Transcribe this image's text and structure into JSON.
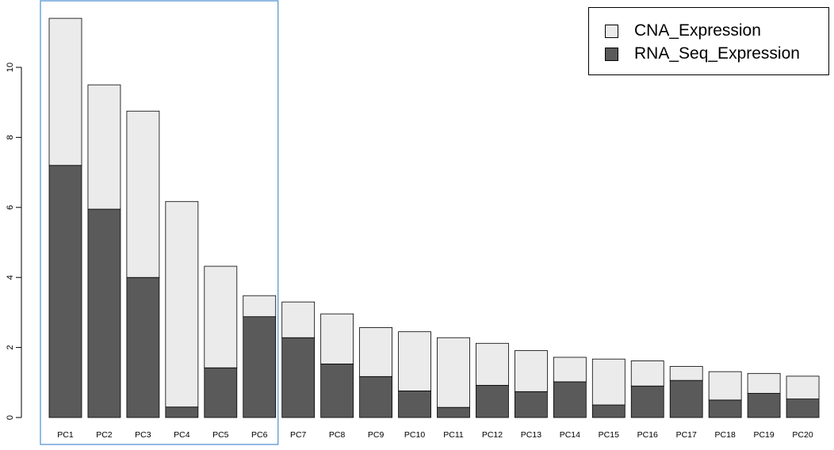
{
  "chart_data": {
    "type": "bar",
    "stacked": true,
    "categories": [
      "PC1",
      "PC2",
      "PC3",
      "PC4",
      "PC5",
      "PC6",
      "PC7",
      "PC8",
      "PC9",
      "PC10",
      "PC11",
      "PC12",
      "PC13",
      "PC14",
      "PC15",
      "PC16",
      "PC17",
      "PC18",
      "PC19",
      "PC20"
    ],
    "series": [
      {
        "name": "RNA_Seq_Expression",
        "color": "#5a5a5a",
        "values": [
          7.2,
          5.95,
          4.0,
          0.3,
          1.42,
          2.88,
          2.28,
          1.53,
          1.17,
          0.76,
          0.29,
          0.92,
          0.74,
          1.02,
          0.36,
          0.9,
          1.06,
          0.5,
          0.69,
          0.53
        ]
      },
      {
        "name": "CNA_Expression",
        "color": "#ebebeb",
        "values": [
          4.2,
          3.55,
          4.75,
          5.87,
          2.9,
          0.6,
          1.02,
          1.43,
          1.4,
          1.69,
          1.99,
          1.2,
          1.17,
          0.7,
          1.31,
          0.72,
          0.4,
          0.81,
          0.57,
          0.65
        ]
      }
    ],
    "yticks": [
      0,
      2,
      4,
      6,
      8,
      10
    ],
    "ylim": [
      0,
      11.6
    ],
    "title": "",
    "xlabel": "",
    "ylabel": "",
    "legend_position": "top-right",
    "highlight_box_categories": [
      "PC1",
      "PC6"
    ],
    "highlight_box_color": "#4a8fcf"
  }
}
